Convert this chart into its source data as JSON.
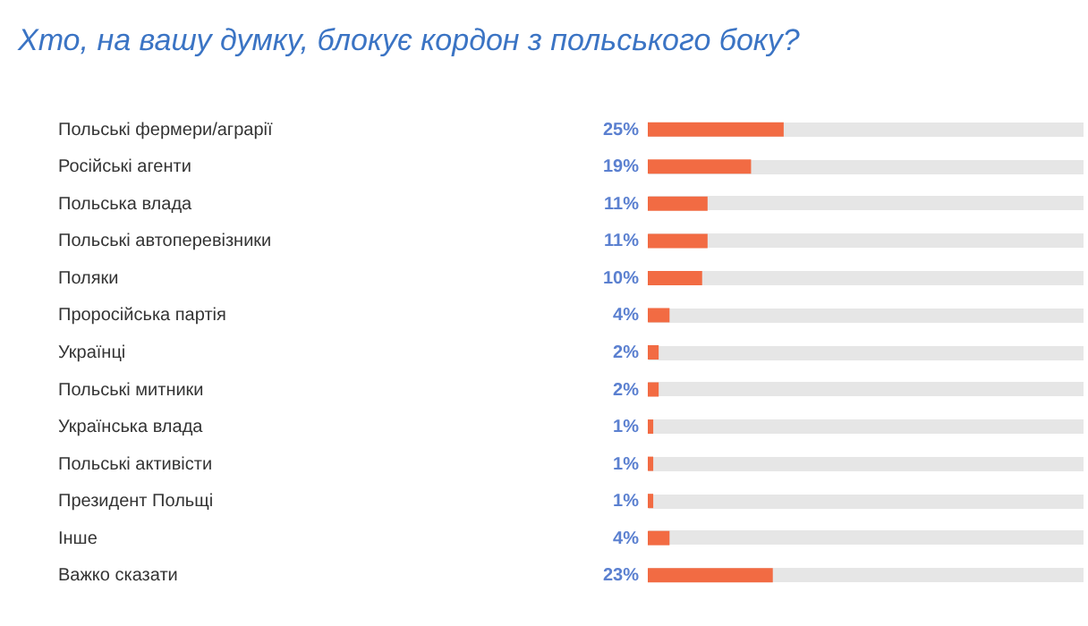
{
  "chart_data": {
    "type": "bar",
    "orientation": "horizontal",
    "title": "Хто, на вашу думку, блокує кордон з польського боку?",
    "categories": [
      "Польські фермери/аграрії",
      "Російські агенти",
      "Польська влада",
      "Польські автоперевізники",
      "Поляки",
      "Проросійська партія",
      "Українці",
      "Польські митники",
      "Українська влада",
      "Польські активісти",
      "Президент Польщі",
      "Інше",
      "Важко сказати"
    ],
    "values": [
      25,
      19,
      11,
      11,
      10,
      4,
      2,
      2,
      1,
      1,
      1,
      4,
      23
    ],
    "value_labels": [
      "25%",
      "19%",
      "11%",
      "11%",
      "10%",
      "4%",
      "2%",
      "2%",
      "1%",
      "1%",
      "1%",
      "4%",
      "23%"
    ],
    "color": "#f26b43",
    "xlim": [
      0,
      80
    ],
    "tick_labels": "y",
    "grid": "y"
  }
}
